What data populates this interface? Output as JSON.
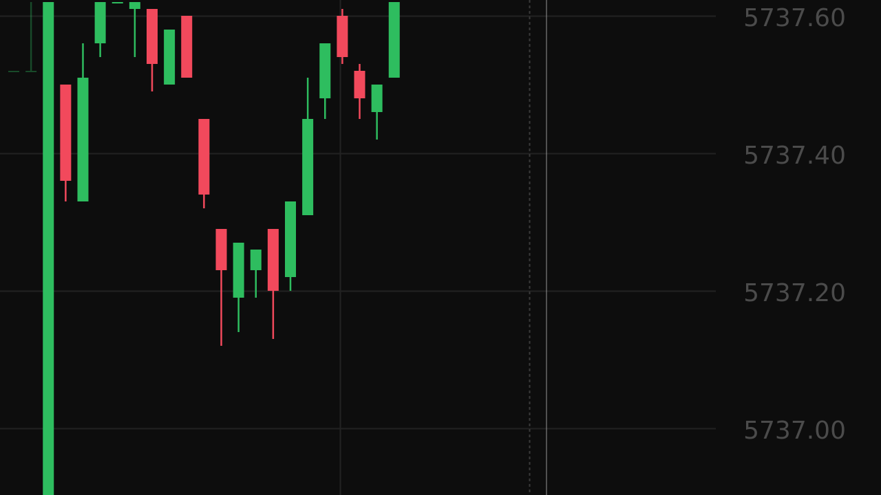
{
  "chart_data": {
    "type": "candlestick",
    "title": "",
    "xlabel": "",
    "ylabel": "",
    "ylim": [
      5736.9,
      5737.63
    ],
    "y_ticks": [
      {
        "value": 5737.6,
        "label": "5737.60"
      },
      {
        "value": 5737.4,
        "label": "5737.40"
      },
      {
        "value": 5737.2,
        "label": "5737.20"
      },
      {
        "value": 5737.0,
        "label": "5737.00"
      }
    ],
    "grid": true,
    "colors": {
      "background": "#0d0d0d",
      "up": "#2ebd5f",
      "down": "#f2495c",
      "grid": "#222222",
      "axis_text": "#4b4b4b",
      "crosshair": "#8a8a8a"
    },
    "candles": [
      {
        "open": 5737.52,
        "close": 5737.52,
        "high": 5737.52,
        "low": 5737.52,
        "direction": "up",
        "faded": true
      },
      {
        "open": 5737.52,
        "close": 5737.52,
        "high": 5737.62,
        "low": 5737.52,
        "direction": "up",
        "faded": true
      },
      {
        "open": 5736.9,
        "close": 5737.62,
        "high": 5737.62,
        "low": 5736.9,
        "direction": "up"
      },
      {
        "open": 5737.5,
        "close": 5737.36,
        "high": 5737.5,
        "low": 5737.33,
        "direction": "down"
      },
      {
        "open": 5737.33,
        "close": 5737.51,
        "high": 5737.56,
        "low": 5737.33,
        "direction": "up"
      },
      {
        "open": 5737.56,
        "close": 5737.62,
        "high": 5737.62,
        "low": 5737.54,
        "direction": "up"
      },
      {
        "open": 5737.62,
        "close": 5737.62,
        "high": 5737.62,
        "low": 5737.62,
        "direction": "up"
      },
      {
        "open": 5737.61,
        "close": 5737.62,
        "high": 5737.62,
        "low": 5737.54,
        "direction": "up"
      },
      {
        "open": 5737.61,
        "close": 5737.53,
        "high": 5737.61,
        "low": 5737.49,
        "direction": "down"
      },
      {
        "open": 5737.5,
        "close": 5737.58,
        "high": 5737.58,
        "low": 5737.5,
        "direction": "up"
      },
      {
        "open": 5737.6,
        "close": 5737.51,
        "high": 5737.6,
        "low": 5737.51,
        "direction": "down"
      },
      {
        "open": 5737.45,
        "close": 5737.34,
        "high": 5737.45,
        "low": 5737.32,
        "direction": "down"
      },
      {
        "open": 5737.29,
        "close": 5737.23,
        "high": 5737.29,
        "low": 5737.12,
        "direction": "down"
      },
      {
        "open": 5737.19,
        "close": 5737.27,
        "high": 5737.27,
        "low": 5737.14,
        "direction": "up"
      },
      {
        "open": 5737.23,
        "close": 5737.26,
        "high": 5737.26,
        "low": 5737.19,
        "direction": "up"
      },
      {
        "open": 5737.29,
        "close": 5737.2,
        "high": 5737.29,
        "low": 5737.13,
        "direction": "down"
      },
      {
        "open": 5737.22,
        "close": 5737.33,
        "high": 5737.33,
        "low": 5737.2,
        "direction": "up"
      },
      {
        "open": 5737.31,
        "close": 5737.45,
        "high": 5737.51,
        "low": 5737.31,
        "direction": "up"
      },
      {
        "open": 5737.48,
        "close": 5737.56,
        "high": 5737.56,
        "low": 5737.45,
        "direction": "up"
      },
      {
        "open": 5737.6,
        "close": 5737.54,
        "high": 5737.61,
        "low": 5737.53,
        "direction": "down"
      },
      {
        "open": 5737.52,
        "close": 5737.48,
        "high": 5737.53,
        "low": 5737.45,
        "direction": "down"
      },
      {
        "open": 5737.46,
        "close": 5737.5,
        "high": 5737.5,
        "low": 5737.42,
        "direction": "up"
      },
      {
        "open": 5737.51,
        "close": 5737.62,
        "high": 5737.62,
        "low": 5737.51,
        "direction": "up"
      }
    ]
  }
}
